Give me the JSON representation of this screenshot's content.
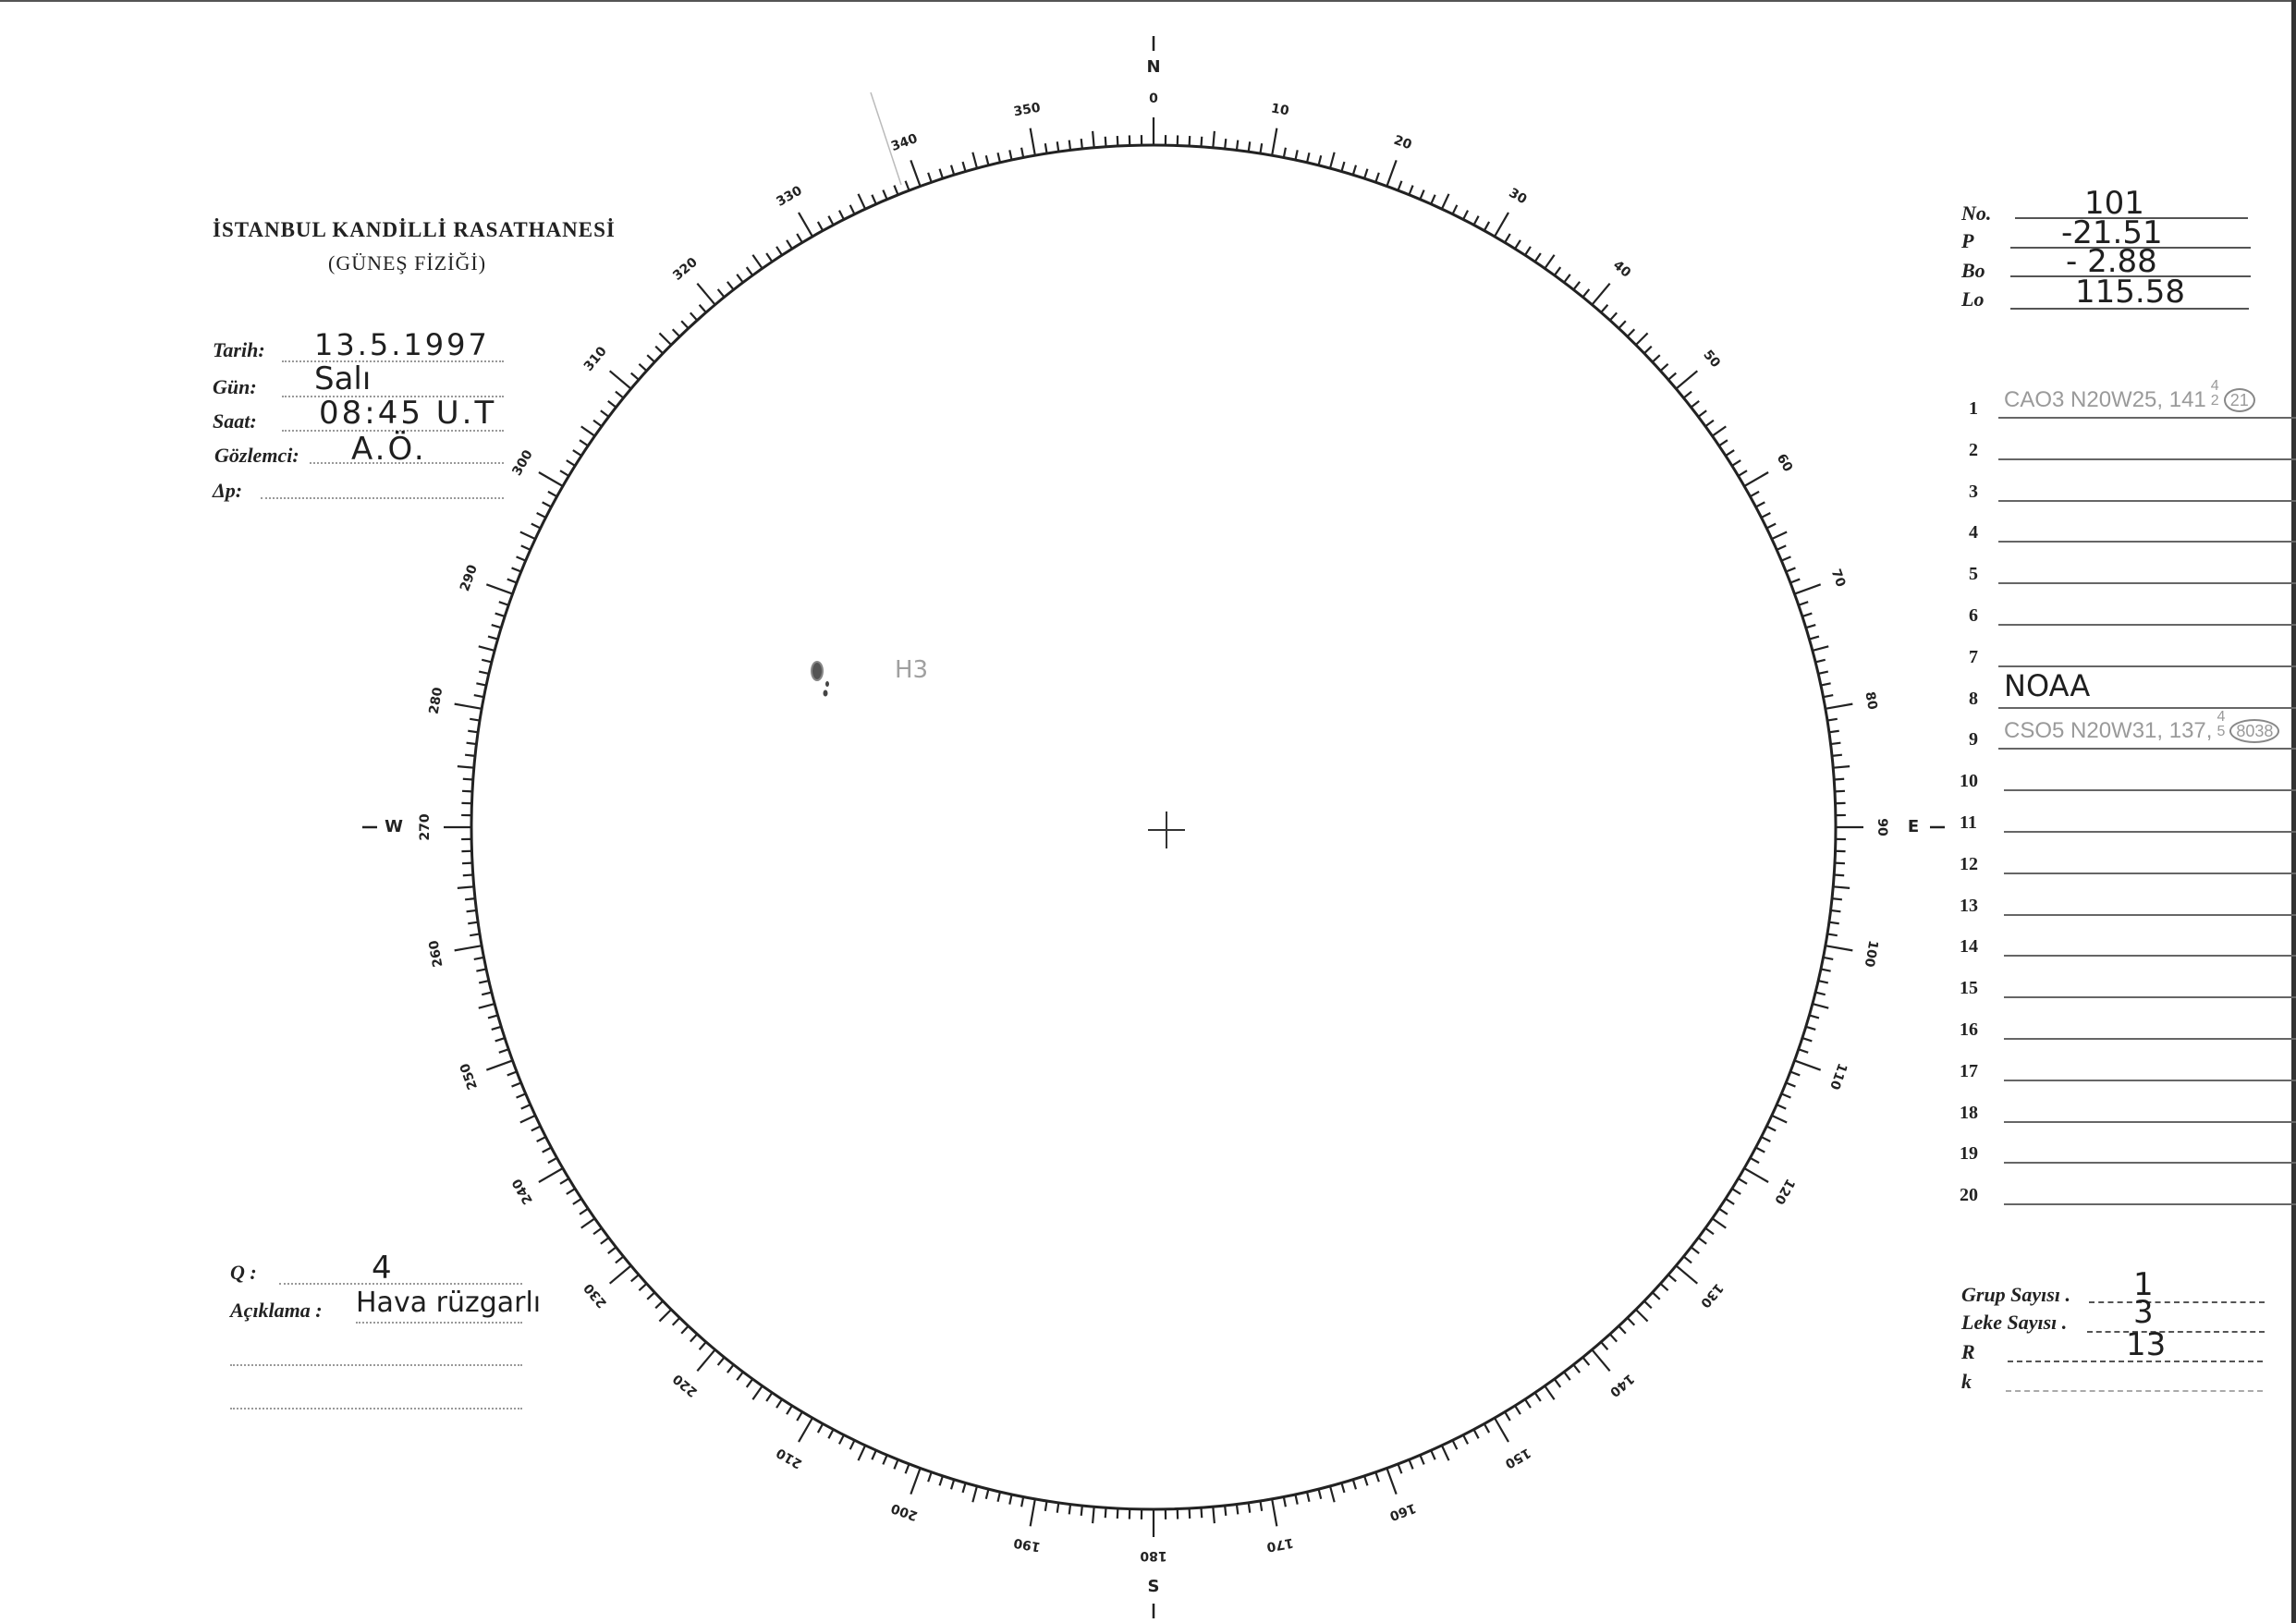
{
  "header": {
    "institution": "İSTANBUL KANDİLLİ RASATHANESİ",
    "department": "(GÜNEŞ FİZİĞİ)"
  },
  "observation": {
    "date_label": "Tarih:",
    "date_value": "13.5.1997",
    "day_label": "Gün:",
    "day_value": "Salı",
    "time_label": "Saat:",
    "time_value": "08:45 U.T",
    "observer_label": "Gözlemci:",
    "observer_value": "A.Ö.",
    "delta_p_label": "Δp:",
    "delta_p_value": ""
  },
  "ephemeris": {
    "no_label": "No.",
    "no_value": "101",
    "p_label": "P",
    "p_value": "-21.51",
    "bo_label": "Bo",
    "bo_value": "- 2.88",
    "lo_label": "Lo",
    "lo_value": "115.58"
  },
  "groups": {
    "rows": [
      {
        "n": "1",
        "text": "CAO3  N20W25, 141",
        "sup": "4",
        "sub": "2",
        "circled": "21"
      },
      {
        "n": "2",
        "text": ""
      },
      {
        "n": "3",
        "text": ""
      },
      {
        "n": "4",
        "text": ""
      },
      {
        "n": "5",
        "text": ""
      },
      {
        "n": "6",
        "text": ""
      },
      {
        "n": "7",
        "text": ""
      },
      {
        "n": "8",
        "text": "NOAA"
      },
      {
        "n": "9",
        "text": "CSO5  N20W31, 137,",
        "sup": "4",
        "sub": "5",
        "circled": "8038"
      },
      {
        "n": "10",
        "text": ""
      },
      {
        "n": "11",
        "text": ""
      },
      {
        "n": "12",
        "text": ""
      },
      {
        "n": "13",
        "text": ""
      },
      {
        "n": "14",
        "text": ""
      },
      {
        "n": "15",
        "text": ""
      },
      {
        "n": "16",
        "text": ""
      },
      {
        "n": "17",
        "text": ""
      },
      {
        "n": "18",
        "text": ""
      },
      {
        "n": "19",
        "text": ""
      },
      {
        "n": "20",
        "text": ""
      }
    ]
  },
  "summary": {
    "group_count_label": "Grup Sayısı .",
    "group_count_value": "1",
    "spot_count_label": "Leke Sayısı .",
    "spot_count_value": "3",
    "r_label": "R",
    "r_value": "13",
    "k_label": "k",
    "k_value": ""
  },
  "quality": {
    "q_label": "Q :",
    "q_value": "4",
    "note_label": "Açıklama :",
    "note_value": "Hava rüzgarlı"
  },
  "disk": {
    "directions": {
      "north": "N",
      "south": "S",
      "east": "E",
      "west": "W"
    },
    "degree_labels": [
      "0",
      "10",
      "20",
      "30",
      "40",
      "50",
      "60",
      "70",
      "80",
      "90",
      "100",
      "110",
      "120",
      "130",
      "140",
      "150",
      "160",
      "170",
      "180",
      "190",
      "200",
      "210",
      "220",
      "230",
      "240",
      "250",
      "260",
      "270",
      "280",
      "290",
      "300",
      "310",
      "320",
      "330",
      "340",
      "350"
    ],
    "group_label": "H3",
    "ink_color": "#222222",
    "pencil_color": "#9a9a9a"
  }
}
